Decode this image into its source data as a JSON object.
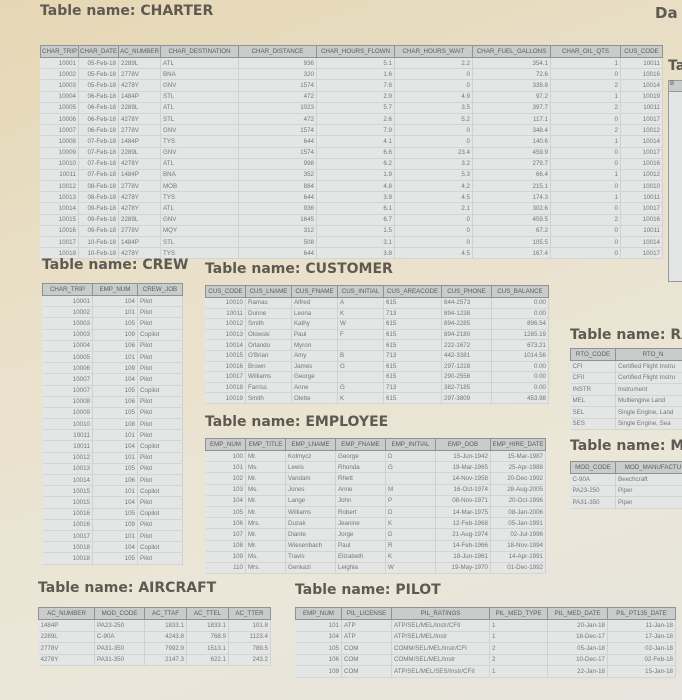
{
  "page": {
    "cut_title_top_right": "Da",
    "cut_title_right": "Ta",
    "cut_header_right": "B"
  },
  "tables": [
    {
      "id": "charter",
      "title": "Table name: CHARTER",
      "columns": [
        "CHAR_TRIP",
        "CHAR_DATE",
        "AC_NUMBER",
        "CHAR_DESTINATION",
        "CHAR_DISTANCE",
        "CHAR_HOURS_FLOWN",
        "CHAR_HOURS_WAIT",
        "CHAR_FUEL_GALLONS",
        "CHAR_OIL_QTS",
        "CUS_CODE"
      ],
      "numeric": [
        true,
        true,
        false,
        false,
        true,
        true,
        true,
        true,
        true,
        true
      ],
      "rows": [
        [
          "10001",
          "05-Feb-18",
          "2289L",
          "ATL",
          "936",
          "5.1",
          "2.2",
          "354.1",
          "1",
          "10011"
        ],
        [
          "10002",
          "05-Feb-18",
          "2778V",
          "BNA",
          "320",
          "1.6",
          "0",
          "72.6",
          "0",
          "10016"
        ],
        [
          "10003",
          "05-Feb-18",
          "4278Y",
          "GNV",
          "1574",
          "7.8",
          "0",
          "339.8",
          "2",
          "10014"
        ],
        [
          "10004",
          "06-Feb-18",
          "1484P",
          "STL",
          "472",
          "2.9",
          "4.9",
          "97.2",
          "1",
          "10019"
        ],
        [
          "10005",
          "06-Feb-18",
          "2289L",
          "ATL",
          "1023",
          "5.7",
          "3.5",
          "397.7",
          "2",
          "10011"
        ],
        [
          "10006",
          "06-Feb-18",
          "4278Y",
          "STL",
          "472",
          "2.6",
          "5.2",
          "117.1",
          "0",
          "10017"
        ],
        [
          "10007",
          "06-Feb-18",
          "2778V",
          "GNV",
          "1574",
          "7.9",
          "0",
          "348.4",
          "2",
          "10012"
        ],
        [
          "10008",
          "07-Feb-18",
          "1484P",
          "TYS",
          "644",
          "4.1",
          "0",
          "140.6",
          "1",
          "10014"
        ],
        [
          "10009",
          "07-Feb-18",
          "2289L",
          "GNV",
          "1574",
          "6.6",
          "23.4",
          "459.9",
          "0",
          "10017"
        ],
        [
          "10010",
          "07-Feb-18",
          "4278Y",
          "ATL",
          "998",
          "6.2",
          "3.2",
          "279.7",
          "0",
          "10016"
        ],
        [
          "10011",
          "07-Feb-18",
          "1484P",
          "BNA",
          "352",
          "1.9",
          "5.3",
          "66.4",
          "1",
          "10012"
        ],
        [
          "10012",
          "08-Feb-18",
          "2778V",
          "MOB",
          "884",
          "4.8",
          "4.2",
          "215.1",
          "0",
          "10010"
        ],
        [
          "10013",
          "08-Feb-18",
          "4278Y",
          "TYS",
          "644",
          "3.9",
          "4.5",
          "174.3",
          "1",
          "10011"
        ],
        [
          "10014",
          "09-Feb-18",
          "4278Y",
          "ATL",
          "936",
          "6.1",
          "2.1",
          "302.6",
          "0",
          "10017"
        ],
        [
          "10015",
          "09-Feb-18",
          "2289L",
          "GNV",
          "1645",
          "6.7",
          "0",
          "459.5",
          "2",
          "10016"
        ],
        [
          "10016",
          "09-Feb-18",
          "2778V",
          "MQY",
          "312",
          "1.5",
          "0",
          "67.2",
          "0",
          "10011"
        ],
        [
          "10017",
          "10-Feb-18",
          "1484P",
          "STL",
          "508",
          "3.1",
          "0",
          "105.5",
          "0",
          "10014"
        ],
        [
          "10018",
          "10-Feb-18",
          "4278Y",
          "TYS",
          "644",
          "3.8",
          "4.5",
          "167.4",
          "0",
          "10017"
        ]
      ]
    },
    {
      "id": "crew",
      "title": "Table name: CREW",
      "columns": [
        "CHAR_TRIP",
        "EMP_NUM",
        "CREW_JOB"
      ],
      "numeric": [
        true,
        true,
        false
      ],
      "rows": [
        [
          "10001",
          "104",
          "Pilot"
        ],
        [
          "10002",
          "101",
          "Pilot"
        ],
        [
          "10003",
          "105",
          "Pilot"
        ],
        [
          "10003",
          "109",
          "Copilot"
        ],
        [
          "10004",
          "106",
          "Pilot"
        ],
        [
          "10005",
          "101",
          "Pilot"
        ],
        [
          "10006",
          "109",
          "Pilot"
        ],
        [
          "10007",
          "104",
          "Pilot"
        ],
        [
          "10007",
          "105",
          "Copilot"
        ],
        [
          "10008",
          "106",
          "Pilot"
        ],
        [
          "10009",
          "105",
          "Pilot"
        ],
        [
          "10010",
          "108",
          "Pilot"
        ],
        [
          "10011",
          "101",
          "Pilot"
        ],
        [
          "10011",
          "104",
          "Copilot"
        ],
        [
          "10012",
          "101",
          "Pilot"
        ],
        [
          "10013",
          "105",
          "Pilot"
        ],
        [
          "10014",
          "106",
          "Pilot"
        ],
        [
          "10015",
          "101",
          "Copilot"
        ],
        [
          "10015",
          "104",
          "Pilot"
        ],
        [
          "10016",
          "105",
          "Copilot"
        ],
        [
          "10016",
          "109",
          "Pilot"
        ],
        [
          "10017",
          "101",
          "Pilot"
        ],
        [
          "10018",
          "104",
          "Copilot"
        ],
        [
          "10018",
          "105",
          "Pilot"
        ]
      ]
    },
    {
      "id": "cust",
      "title": "Table name: CUSTOMER",
      "columns": [
        "CUS_CODE",
        "CUS_LNAME",
        "CUS_FNAME",
        "CUS_INITIAL",
        "CUS_AREACODE",
        "CUS_PHONE",
        "CUS_BALANCE"
      ],
      "numeric": [
        true,
        false,
        false,
        false,
        false,
        false,
        true
      ],
      "rows": [
        [
          "10010",
          "Ramas",
          "Alfred",
          "A",
          "615",
          "844-2573",
          "0.00"
        ],
        [
          "10011",
          "Dunne",
          "Leona",
          "K",
          "713",
          "894-1238",
          "0.00"
        ],
        [
          "10012",
          "Smith",
          "Kathy",
          "W",
          "615",
          "894-2285",
          "896.54"
        ],
        [
          "10013",
          "Olowski",
          "Paul",
          "F",
          "615",
          "894-2180",
          "1285.19"
        ],
        [
          "10014",
          "Orlando",
          "Myron",
          "",
          "615",
          "222-1672",
          "673.21"
        ],
        [
          "10015",
          "O'Brian",
          "Amy",
          "B",
          "713",
          "442-3381",
          "1014.56"
        ],
        [
          "10016",
          "Brown",
          "James",
          "G",
          "615",
          "297-1228",
          "0.00"
        ],
        [
          "10017",
          "Williams",
          "George",
          "",
          "615",
          "290-2556",
          "0.00"
        ],
        [
          "10018",
          "Farriss",
          "Anne",
          "G",
          "713",
          "382-7185",
          "0.00"
        ],
        [
          "10019",
          "Smith",
          "Olette",
          "K",
          "615",
          "297-3809",
          "453.98"
        ]
      ]
    },
    {
      "id": "emp",
      "title": "Table name: EMPLOYEE",
      "columns": [
        "EMP_NUM",
        "EMP_TITLE",
        "EMP_LNAME",
        "EMP_FNAME",
        "EMP_INITIAL",
        "EMP_DOB",
        "EMP_HIRE_DATE"
      ],
      "numeric": [
        true,
        false,
        false,
        false,
        false,
        true,
        true
      ],
      "rows": [
        [
          "100",
          "Mr.",
          "Kolmycz",
          "George",
          "D",
          "15-Jun-1942",
          "15-Mar-1987"
        ],
        [
          "101",
          "Ms.",
          "Lewis",
          "Rhonda",
          "G",
          "19-Mar-1965",
          "25-Apr-1988"
        ],
        [
          "102",
          "Mr.",
          "Vandam",
          "Rhett",
          "",
          "14-Nov-1958",
          "20-Dec-1992"
        ],
        [
          "103",
          "Ms.",
          "Jones",
          "Anne",
          "M",
          "16-Oct-1974",
          "28-Aug-2005"
        ],
        [
          "104",
          "Mr.",
          "Lange",
          "John",
          "P",
          "08-Nov-1971",
          "20-Oct-1996"
        ],
        [
          "105",
          "Mr.",
          "Williams",
          "Robert",
          "D",
          "14-Mar-1975",
          "08-Jan-2006"
        ],
        [
          "106",
          "Mrs.",
          "Duzak",
          "Jeanine",
          "K",
          "12-Feb-1968",
          "05-Jan-1991"
        ],
        [
          "107",
          "Mr.",
          "Diante",
          "Jorge",
          "D",
          "21-Aug-1974",
          "02-Jul-1996"
        ],
        [
          "108",
          "Mr.",
          "Wiesenbach",
          "Paul",
          "R",
          "14-Feb-1966",
          "18-Nov-1994"
        ],
        [
          "109",
          "Ms.",
          "Travis",
          "Elizabeth",
          "K",
          "18-Jun-1961",
          "14-Apr-1991"
        ],
        [
          "110",
          "Mrs.",
          "Genkazi",
          "Leighla",
          "W",
          "19-May-1970",
          "01-Dec-1992"
        ]
      ]
    },
    {
      "id": "rating",
      "title": "Table name: RAT",
      "columns": [
        "RTO_CODE",
        "RTO_N"
      ],
      "numeric": [
        false,
        false
      ],
      "rows": [
        [
          "CFI",
          "Certified Flight Instru"
        ],
        [
          "CFII",
          "Certified Flight Instru"
        ],
        [
          "INSTR",
          "Instrument"
        ],
        [
          "MEL",
          "Multiengine Land"
        ],
        [
          "SEL",
          "Single Engine, Land"
        ],
        [
          "SES",
          "Single Engine, Sea"
        ]
      ]
    },
    {
      "id": "model",
      "title": "Table name: MO",
      "columns": [
        "MOD_CODE",
        "MOD_MANUFACTU"
      ],
      "numeric": [
        false,
        false
      ],
      "rows": [
        [
          "C-90A",
          "Beechcraft"
        ],
        [
          "PA23-250",
          "Piper"
        ],
        [
          "PA31-350",
          "Piper"
        ]
      ]
    },
    {
      "id": "aircraft",
      "title": "Table name: AIRCRAFT",
      "columns": [
        "AC_NUMBER",
        "MOD_CODE",
        "AC_TTAF",
        "AC_TTEL",
        "AC_TTER"
      ],
      "numeric": [
        false,
        false,
        true,
        true,
        true
      ],
      "rows": [
        [
          "1484P",
          "PA23-250",
          "1833.1",
          "1833.1",
          "101.8"
        ],
        [
          "2289L",
          "C-90A",
          "4243.8",
          "768.9",
          "1123.4"
        ],
        [
          "2778V",
          "PA31-350",
          "7992.9",
          "1513.1",
          "789.5"
        ],
        [
          "4278Y",
          "PA31-350",
          "2147.3",
          "622.1",
          "243.2"
        ]
      ]
    },
    {
      "id": "pilot",
      "title": "Table name: PILOT",
      "columns": [
        "EMP_NUM",
        "PIL_LICENSE",
        "PIL_RATINGS",
        "PIL_MED_TYPE",
        "PIL_MED_DATE",
        "PIL_PT135_DATE"
      ],
      "numeric": [
        true,
        false,
        false,
        false,
        true,
        true
      ],
      "rows": [
        [
          "101",
          "ATP",
          "ATP/SEL/MEL/Instr/CFII",
          "1",
          "20-Jan-18",
          "11-Jan-18"
        ],
        [
          "104",
          "ATP",
          "ATP/SEL/MEL/Instr",
          "1",
          "18-Dec-17",
          "17-Jan-18"
        ],
        [
          "105",
          "COM",
          "COMM/SEL/MEL/Instr/CFI",
          "2",
          "05-Jan-18",
          "02-Jan-18"
        ],
        [
          "106",
          "COM",
          "COMM/SEL/MEL/Instr",
          "2",
          "10-Dec-17",
          "02-Feb-18"
        ],
        [
          "109",
          "COM",
          "ATP/SEL/MEL/SES/Instr/CFII",
          "1",
          "22-Jan-18",
          "15-Jan-18"
        ]
      ]
    }
  ]
}
